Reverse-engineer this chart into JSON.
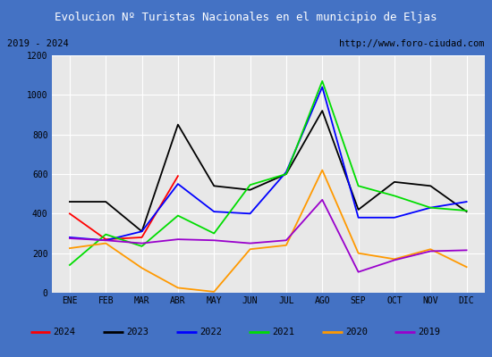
{
  "title": "Evolucion Nº Turistas Nacionales en el municipio de Eljas",
  "subtitle_left": "2019 - 2024",
  "subtitle_right": "http://www.foro-ciudad.com",
  "months": [
    "ENE",
    "FEB",
    "MAR",
    "ABR",
    "MAY",
    "JUN",
    "JUL",
    "AGO",
    "SEP",
    "OCT",
    "NOV",
    "DIC"
  ],
  "ylim": [
    0,
    1200
  ],
  "yticks": [
    0,
    200,
    400,
    600,
    800,
    1000,
    1200
  ],
  "series": {
    "2024": {
      "color": "#ff0000",
      "values": [
        400,
        270,
        280,
        590,
        null,
        null,
        null,
        null,
        null,
        null,
        null,
        null
      ]
    },
    "2023": {
      "color": "#000000",
      "values": [
        460,
        460,
        310,
        850,
        540,
        520,
        600,
        920,
        420,
        560,
        540,
        410
      ]
    },
    "2022": {
      "color": "#0000ff",
      "values": [
        280,
        265,
        310,
        550,
        410,
        400,
        610,
        1040,
        380,
        380,
        430,
        460
      ]
    },
    "2021": {
      "color": "#00dd00",
      "values": [
        140,
        295,
        235,
        390,
        300,
        545,
        600,
        1070,
        540,
        490,
        430,
        415
      ]
    },
    "2020": {
      "color": "#ff9900",
      "values": [
        225,
        250,
        125,
        25,
        5,
        220,
        240,
        620,
        200,
        170,
        220,
        130
      ]
    },
    "2019": {
      "color": "#9900cc",
      "values": [
        275,
        265,
        250,
        270,
        265,
        250,
        265,
        470,
        105,
        165,
        210,
        215
      ]
    }
  },
  "title_bg_color": "#4472c4",
  "title_font_color": "#ffffff",
  "bg_color": "#e8e8e8",
  "grid_color": "#ffffff",
  "border_color": "#4472c4",
  "legend_order": [
    "2024",
    "2023",
    "2022",
    "2021",
    "2020",
    "2019"
  ]
}
